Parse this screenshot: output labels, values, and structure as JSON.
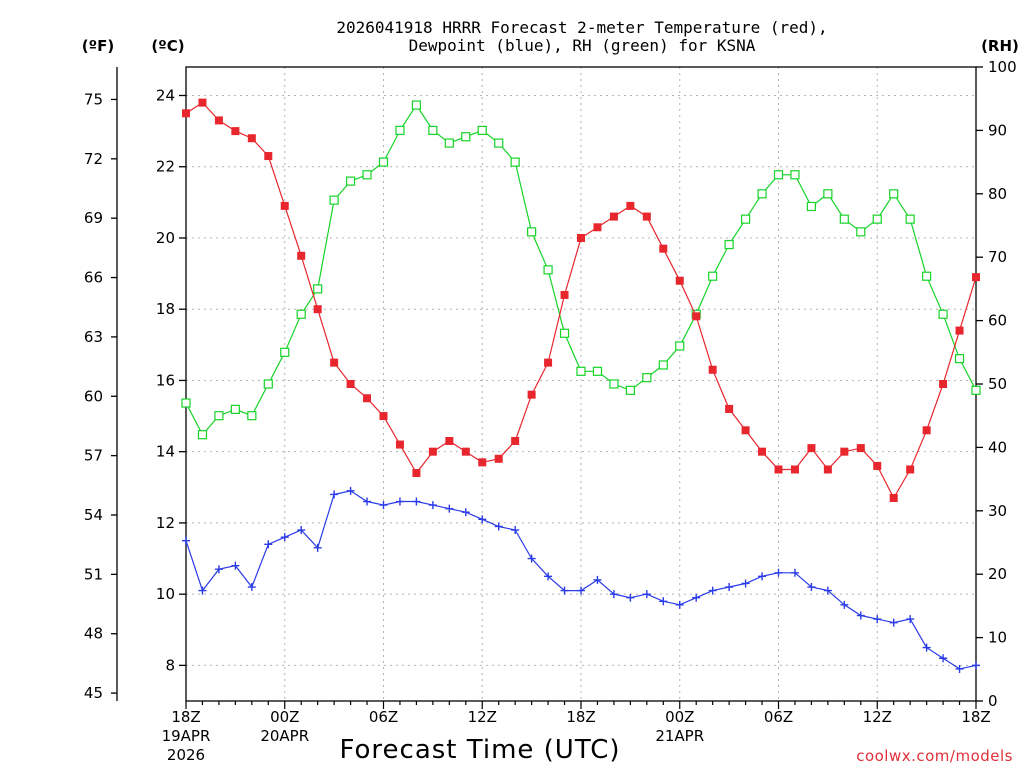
{
  "title_line1": "2026041918 HRRR Forecast 2-meter Temperature (red),",
  "title_line2": "Dewpoint (blue), RH (green) for KSNA",
  "credit": "coolwx.com/models",
  "colors": {
    "temperature": "#e8262e",
    "dewpoint": "#2a3be8",
    "rh": "#16d428",
    "grid": "#b4b4b4"
  },
  "chart_data": {
    "type": "line",
    "title": "2026041918 HRRR Forecast 2-meter Temperature (red), Dewpoint (blue), RH (green) for KSNA",
    "xlabel": "Forecast Time (UTC)",
    "x_hours": [
      0,
      1,
      2,
      3,
      4,
      5,
      6,
      7,
      8,
      9,
      10,
      11,
      12,
      13,
      14,
      15,
      16,
      17,
      18,
      19,
      20,
      21,
      22,
      23,
      24,
      25,
      26,
      27,
      28,
      29,
      30,
      31,
      32,
      33,
      34,
      35,
      36,
      37,
      38,
      39,
      40,
      41,
      42,
      43,
      44,
      45,
      46,
      47,
      48
    ],
    "x_ticks": [
      {
        "hour": 0,
        "label": "18Z",
        "sub1": "19APR",
        "sub2": "2026"
      },
      {
        "hour": 6,
        "label": "00Z",
        "sub1": "20APR",
        "sub2": ""
      },
      {
        "hour": 12,
        "label": "06Z",
        "sub1": "",
        "sub2": ""
      },
      {
        "hour": 18,
        "label": "12Z",
        "sub1": "",
        "sub2": ""
      },
      {
        "hour": 24,
        "label": "18Z",
        "sub1": "",
        "sub2": ""
      },
      {
        "hour": 30,
        "label": "00Z",
        "sub1": "21APR",
        "sub2": ""
      },
      {
        "hour": 36,
        "label": "06Z",
        "sub1": "",
        "sub2": ""
      },
      {
        "hour": 42,
        "label": "12Z",
        "sub1": "",
        "sub2": ""
      },
      {
        "hour": 48,
        "label": "18Z",
        "sub1": "",
        "sub2": ""
      }
    ],
    "xlim": [
      0,
      48
    ],
    "y_left_celsius": {
      "label": "(ºC)",
      "range": [
        7.0,
        24.8
      ],
      "ticks": [
        8,
        10,
        12,
        14,
        16,
        18,
        20,
        22,
        24
      ]
    },
    "y_left_fahrenheit": {
      "label": "(ºF)",
      "ticks": [
        45,
        48,
        51,
        54,
        57,
        60,
        63,
        66,
        69,
        72,
        75
      ]
    },
    "y_right_rh": {
      "label": "(RH)",
      "range": [
        0,
        100
      ],
      "ticks": [
        0,
        10,
        20,
        30,
        40,
        50,
        60,
        70,
        80,
        90,
        100
      ]
    },
    "series": [
      {
        "name": "2-meter Temperature",
        "axis": "celsius",
        "values": [
          23.5,
          23.8,
          23.3,
          23.0,
          22.8,
          22.3,
          20.9,
          19.5,
          18.0,
          16.5,
          15.9,
          15.5,
          15.0,
          14.2,
          13.4,
          14.0,
          14.3,
          14.0,
          13.7,
          13.8,
          14.3,
          15.6,
          16.5,
          18.4,
          20.0,
          20.3,
          20.6,
          20.9,
          20.6,
          19.7,
          18.8,
          17.8,
          16.3,
          15.2,
          14.6,
          14.0,
          13.5,
          13.5,
          14.1,
          13.5,
          14.0,
          14.1,
          13.6,
          12.7,
          13.5,
          14.6,
          15.9,
          17.4,
          18.9
        ]
      },
      {
        "name": "Dewpoint",
        "axis": "celsius",
        "values": [
          11.5,
          10.1,
          10.7,
          10.8,
          10.2,
          11.4,
          11.6,
          11.8,
          11.3,
          12.8,
          12.9,
          12.6,
          12.5,
          12.6,
          12.6,
          12.5,
          12.4,
          12.3,
          12.1,
          11.9,
          11.8,
          11.0,
          10.5,
          10.1,
          10.1,
          10.4,
          10.0,
          9.9,
          10.0,
          9.8,
          9.7,
          9.9,
          10.1,
          10.2,
          10.3,
          10.5,
          10.6,
          10.6,
          10.2,
          10.1,
          9.7,
          9.4,
          9.3,
          9.2,
          9.3,
          8.5,
          8.2,
          7.9,
          8.0
        ]
      },
      {
        "name": "Relative Humidity",
        "axis": "rh",
        "values": [
          47,
          42,
          45,
          46,
          45,
          50,
          55,
          61,
          65,
          79,
          82,
          83,
          85,
          90,
          94,
          90,
          88,
          89,
          90,
          88,
          85,
          74,
          68,
          58,
          52,
          52,
          50,
          49,
          51,
          53,
          56,
          61,
          67,
          72,
          76,
          80,
          83,
          83,
          78,
          80,
          76,
          74,
          76,
          80,
          76,
          67,
          61,
          54,
          49
        ]
      }
    ]
  }
}
